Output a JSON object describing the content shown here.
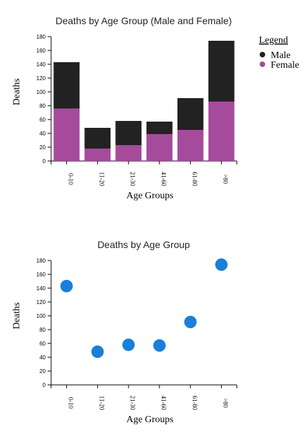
{
  "chart_data": [
    {
      "type": "bar",
      "stacked": true,
      "title": "Deaths by Age Group (Male and Female)",
      "xlabel": "Age Groups",
      "ylabel": "Deaths",
      "categories": [
        "0-10",
        "11-20",
        "21-30",
        "41-60",
        "61-80",
        ">80"
      ],
      "ylim": [
        0,
        180
      ],
      "yticks": [
        0,
        20,
        40,
        60,
        80,
        100,
        120,
        140,
        160,
        180
      ],
      "series": [
        {
          "name": "Female",
          "color": "#a64a9c",
          "values": [
            76,
            18,
            23,
            39,
            45,
            86
          ]
        },
        {
          "name": "Male",
          "color": "#222222",
          "values": [
            67,
            30,
            35,
            18,
            46,
            88
          ]
        }
      ],
      "legend": {
        "title": "Legend",
        "placement": "right",
        "items": [
          "Male",
          "Female"
        ]
      }
    },
    {
      "type": "scatter",
      "title": "Deaths by Age Group",
      "xlabel": "Age Groups",
      "ylabel": "Deaths",
      "categories": [
        "0-10",
        "11-20",
        "21-30",
        "41-60",
        "61-80",
        ">80"
      ],
      "ylim": [
        0,
        180
      ],
      "yticks": [
        0,
        20,
        40,
        60,
        80,
        100,
        120,
        140,
        160,
        180
      ],
      "color": "#1a7fd8",
      "values": [
        143,
        48,
        58,
        57,
        91,
        174
      ]
    }
  ]
}
